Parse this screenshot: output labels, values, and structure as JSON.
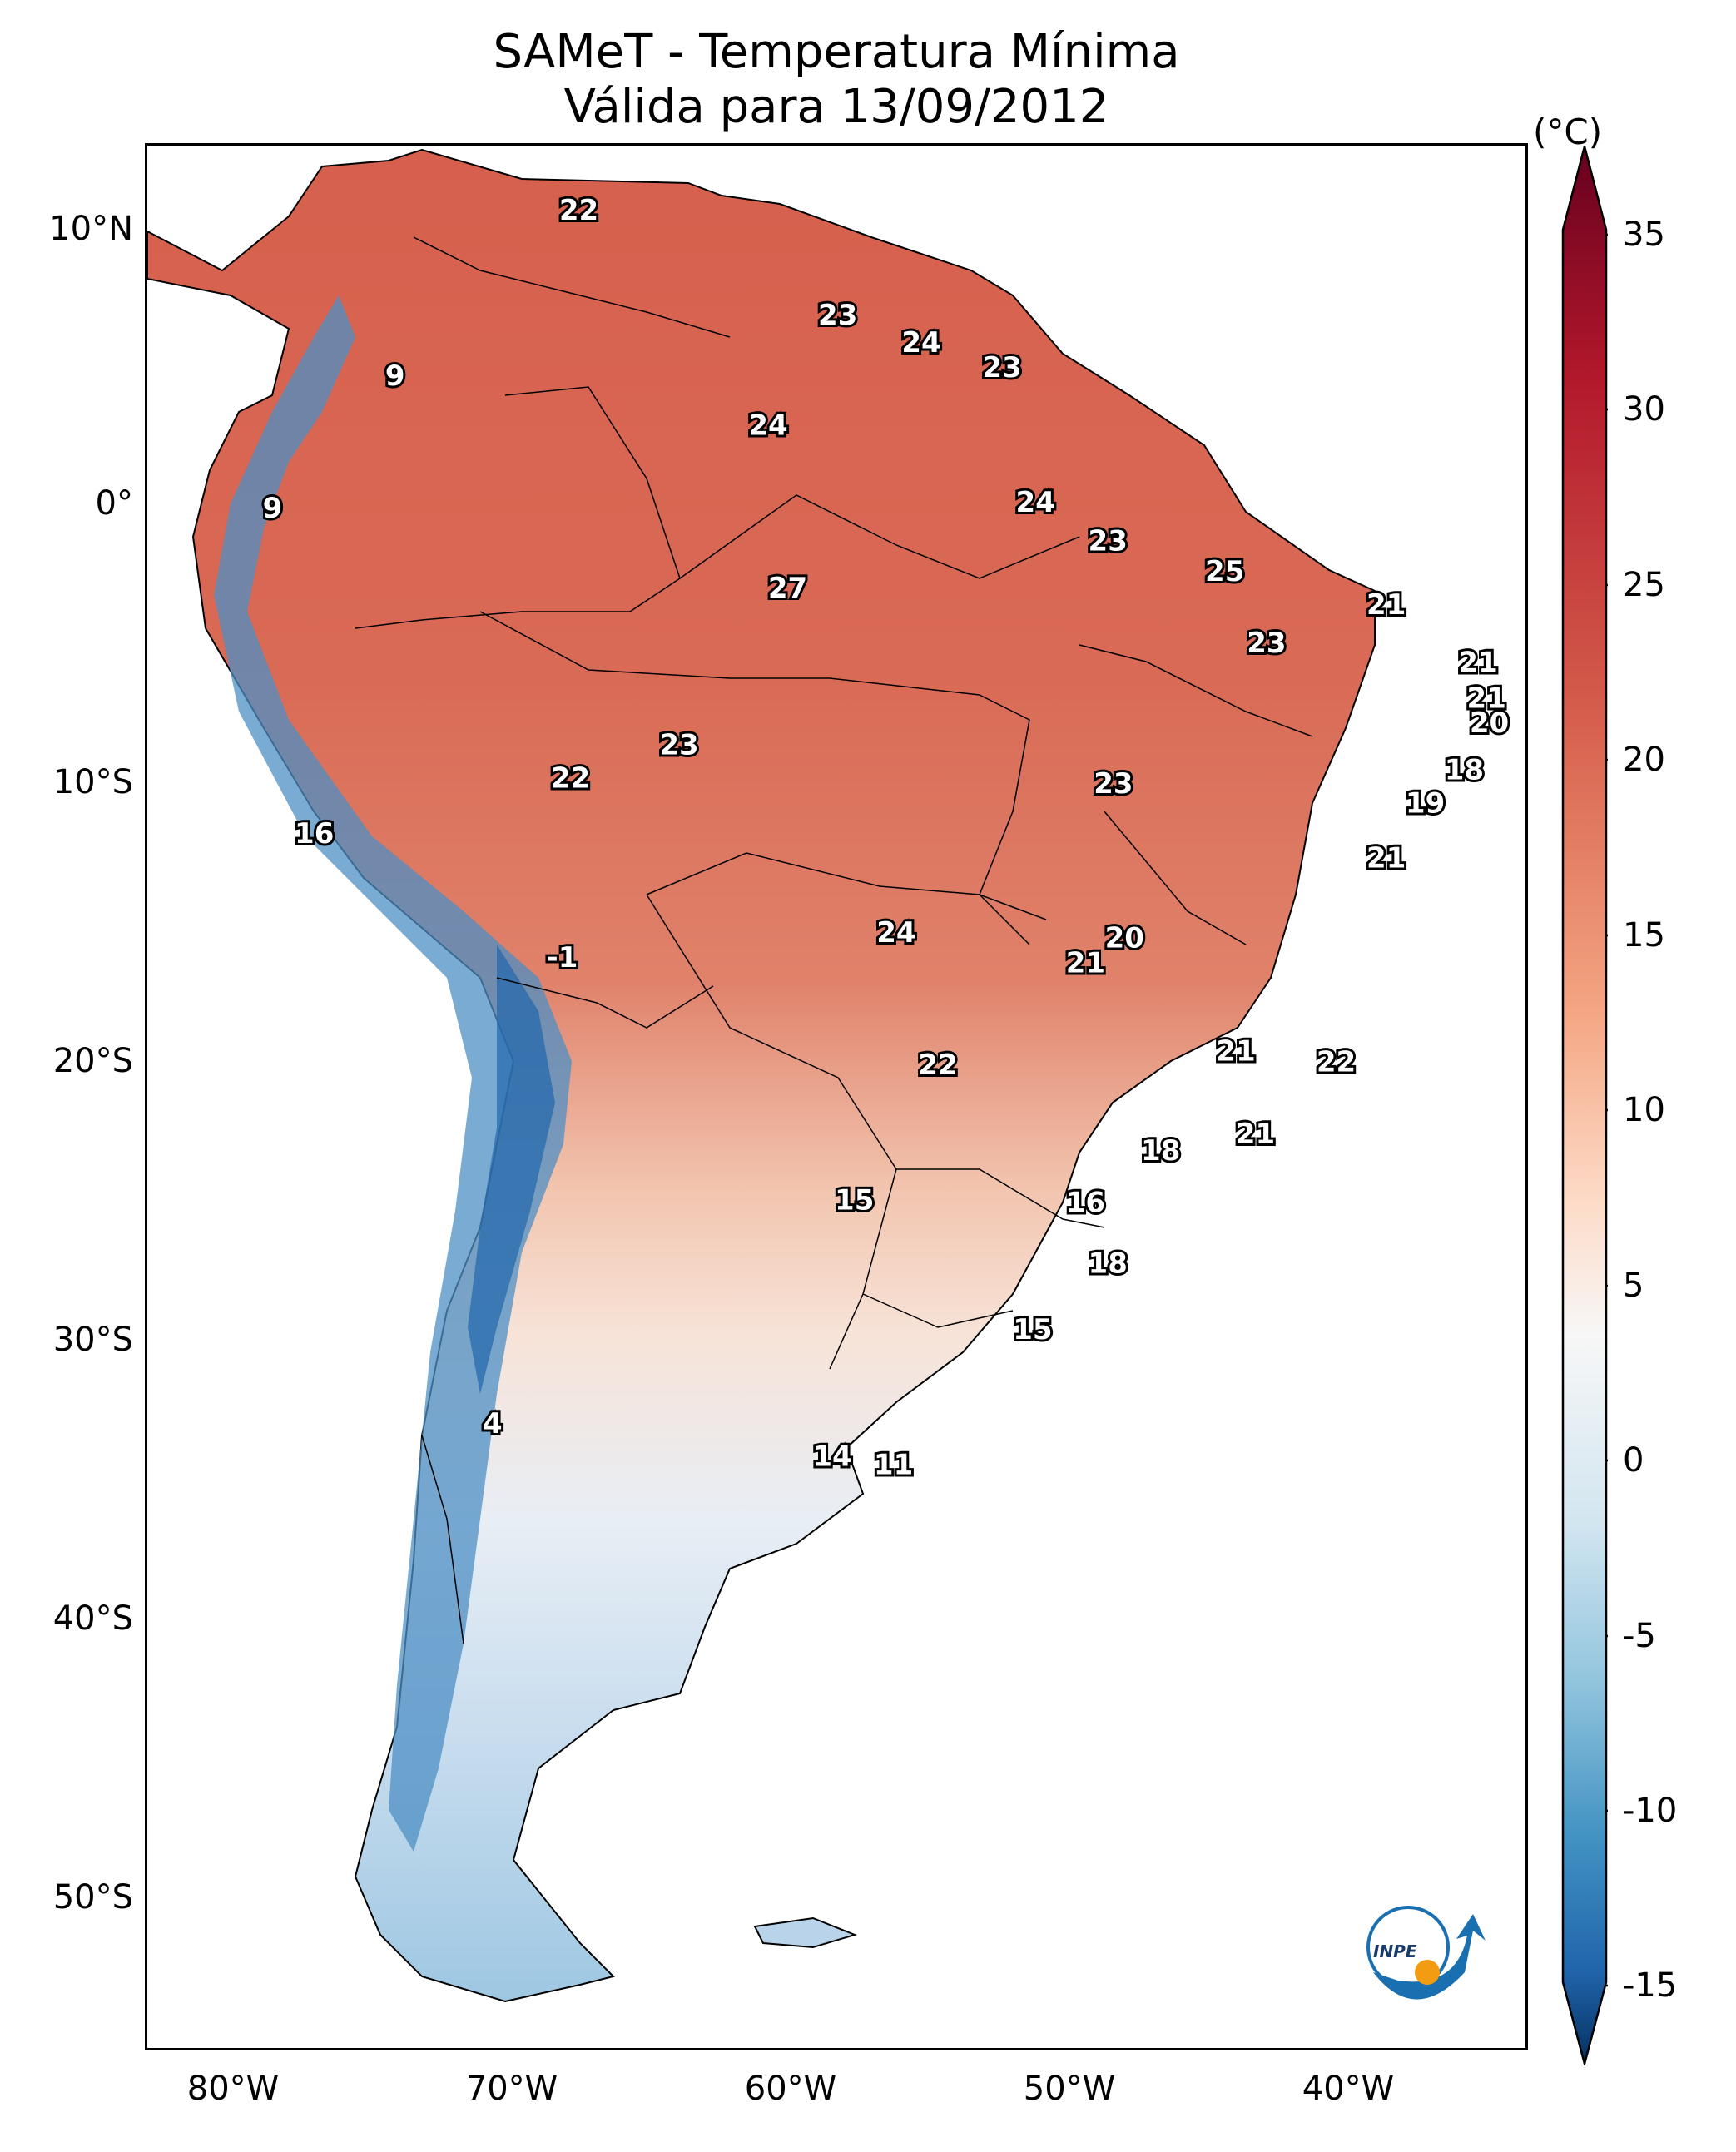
{
  "title": "SAMeT - Temperatura Mínima",
  "subtitle": "Válida para 13/09/2012",
  "colorbar": {
    "unit": "(°C)",
    "ticks": [
      "35",
      "30",
      "25",
      "20",
      "15",
      "10",
      "5",
      "0",
      "-5",
      "-10",
      "-15"
    ],
    "min": -15,
    "max": 35
  },
  "axes": {
    "lat_labels": [
      "10°N",
      "0°",
      "10°S",
      "20°S",
      "30°S",
      "40°S",
      "50°S"
    ],
    "lon_labels": [
      "80°W",
      "70°W",
      "60°W",
      "50°W",
      "40°W"
    ]
  },
  "points": [
    {
      "value": "22",
      "lon": -67.5,
      "lat": 10.6
    },
    {
      "value": "9",
      "lon": -74.1,
      "lat": 4.6
    },
    {
      "value": "9",
      "lon": -78.5,
      "lat": -0.2
    },
    {
      "value": "23",
      "lon": -58.2,
      "lat": 6.8
    },
    {
      "value": "24",
      "lon": -55.2,
      "lat": 5.8
    },
    {
      "value": "23",
      "lon": -52.3,
      "lat": 4.9
    },
    {
      "value": "24",
      "lon": -60.7,
      "lat": 2.8
    },
    {
      "value": "24",
      "lon": -51.1,
      "lat": 0.0
    },
    {
      "value": "27",
      "lon": -60.0,
      "lat": -3.1
    },
    {
      "value": "23",
      "lon": -48.5,
      "lat": -1.4
    },
    {
      "value": "25",
      "lon": -44.3,
      "lat": -2.5
    },
    {
      "value": "21",
      "lon": -38.5,
      "lat": -3.7
    },
    {
      "value": "23",
      "lon": -42.8,
      "lat": -5.1
    },
    {
      "value": "21",
      "lon": -35.2,
      "lat": -5.8
    },
    {
      "value": "21",
      "lon": -34.9,
      "lat": -7.1
    },
    {
      "value": "20",
      "lon": -34.8,
      "lat": -8.0
    },
    {
      "value": "18",
      "lon": -35.7,
      "lat": -9.7
    },
    {
      "value": "19",
      "lon": -37.1,
      "lat": -10.9
    },
    {
      "value": "23",
      "lon": -63.9,
      "lat": -8.8
    },
    {
      "value": "22",
      "lon": -67.8,
      "lat": -10.0
    },
    {
      "value": "23",
      "lon": -48.3,
      "lat": -10.2
    },
    {
      "value": "16",
      "lon": -77.0,
      "lat": -12.0
    },
    {
      "value": "21",
      "lon": -38.5,
      "lat": -12.9
    },
    {
      "value": "24",
      "lon": -56.1,
      "lat": -15.6
    },
    {
      "value": "20",
      "lon": -47.9,
      "lat": -15.8
    },
    {
      "value": "21",
      "lon": -49.3,
      "lat": -16.7
    },
    {
      "value": "-1",
      "lon": -68.1,
      "lat": -16.5
    },
    {
      "value": "21",
      "lon": -43.9,
      "lat": -19.9
    },
    {
      "value": "22",
      "lon": -40.3,
      "lat": -20.3
    },
    {
      "value": "22",
      "lon": -54.6,
      "lat": -20.4
    },
    {
      "value": "21",
      "lon": -43.2,
      "lat": -22.9
    },
    {
      "value": "18",
      "lon": -46.6,
      "lat": -23.5
    },
    {
      "value": "15",
      "lon": -57.6,
      "lat": -25.3
    },
    {
      "value": "16",
      "lon": -49.3,
      "lat": -25.4
    },
    {
      "value": "18",
      "lon": -48.5,
      "lat": -27.6
    },
    {
      "value": "15",
      "lon": -51.2,
      "lat": -30.0
    },
    {
      "value": "4",
      "lon": -70.6,
      "lat": -33.4
    },
    {
      "value": "14",
      "lon": -58.4,
      "lat": -34.6
    },
    {
      "value": "11",
      "lon": -56.2,
      "lat": -34.9
    }
  ]
}
